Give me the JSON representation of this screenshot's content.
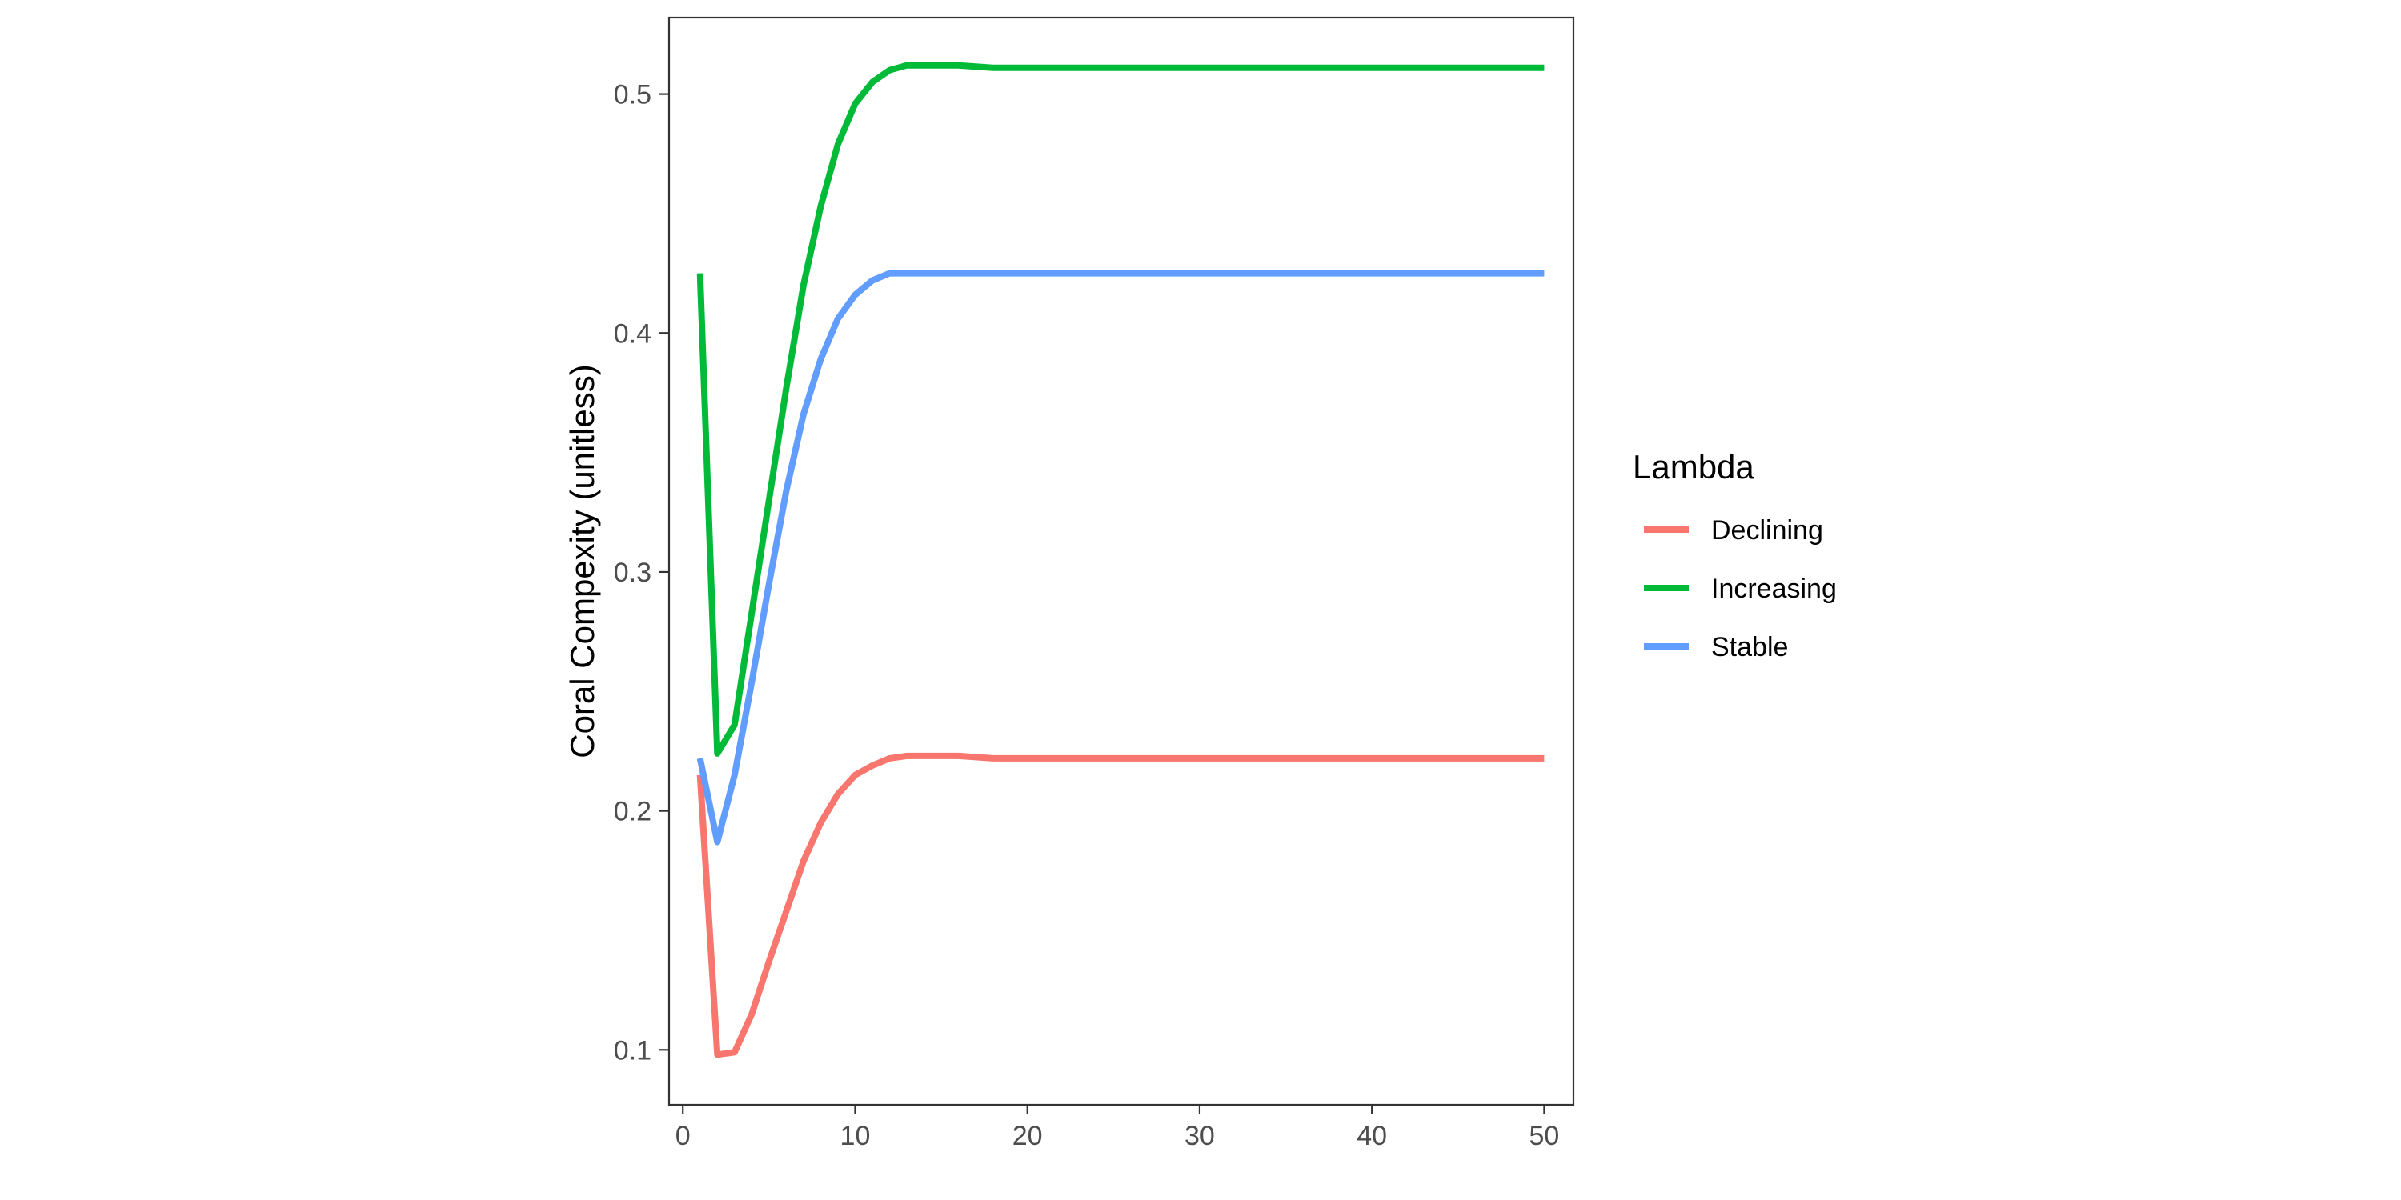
{
  "chart_data": {
    "type": "line",
    "title": "",
    "xlabel": "",
    "ylabel": "Coral Compexity (unitless)",
    "xlim": [
      -0.8,
      51.7
    ],
    "ylim": [
      0.077,
      0.532
    ],
    "x_ticks": [
      0,
      10,
      20,
      30,
      40,
      50
    ],
    "y_ticks": [
      0.1,
      0.2,
      0.3,
      0.4,
      0.5
    ],
    "grid": false,
    "legend": {
      "title": "Lambda",
      "position": "right"
    },
    "series": [
      {
        "name": "Declining",
        "color": "#F8766D",
        "x": [
          1,
          2,
          3,
          4,
          5,
          6,
          7,
          8,
          9,
          10,
          11,
          12,
          13,
          14,
          15,
          16,
          18,
          20,
          25,
          30,
          35,
          40,
          45,
          50
        ],
        "y": [
          0.215,
          0.098,
          0.099,
          0.115,
          0.137,
          0.158,
          0.179,
          0.195,
          0.207,
          0.215,
          0.219,
          0.222,
          0.223,
          0.223,
          0.223,
          0.223,
          0.222,
          0.222,
          0.222,
          0.222,
          0.222,
          0.222,
          0.222,
          0.222
        ]
      },
      {
        "name": "Increasing",
        "color": "#00BA38",
        "x": [
          1,
          2,
          3,
          4,
          5,
          6,
          7,
          8,
          9,
          10,
          11,
          12,
          13,
          14,
          15,
          16,
          18,
          20,
          25,
          30,
          35,
          40,
          45,
          50
        ],
        "y": [
          0.425,
          0.224,
          0.236,
          0.283,
          0.33,
          0.377,
          0.42,
          0.453,
          0.479,
          0.496,
          0.505,
          0.51,
          0.512,
          0.512,
          0.512,
          0.512,
          0.511,
          0.511,
          0.511,
          0.511,
          0.511,
          0.511,
          0.511,
          0.511
        ]
      },
      {
        "name": "Stable",
        "color": "#619CFF",
        "x": [
          1,
          2,
          3,
          4,
          5,
          6,
          7,
          8,
          9,
          10,
          11,
          12,
          13,
          14,
          15,
          16,
          18,
          20,
          25,
          30,
          35,
          40,
          45,
          50
        ],
        "y": [
          0.222,
          0.187,
          0.215,
          0.254,
          0.295,
          0.334,
          0.366,
          0.389,
          0.406,
          0.416,
          0.422,
          0.425,
          0.425,
          0.425,
          0.425,
          0.425,
          0.425,
          0.425,
          0.425,
          0.425,
          0.425,
          0.425,
          0.425,
          0.425
        ]
      }
    ]
  }
}
